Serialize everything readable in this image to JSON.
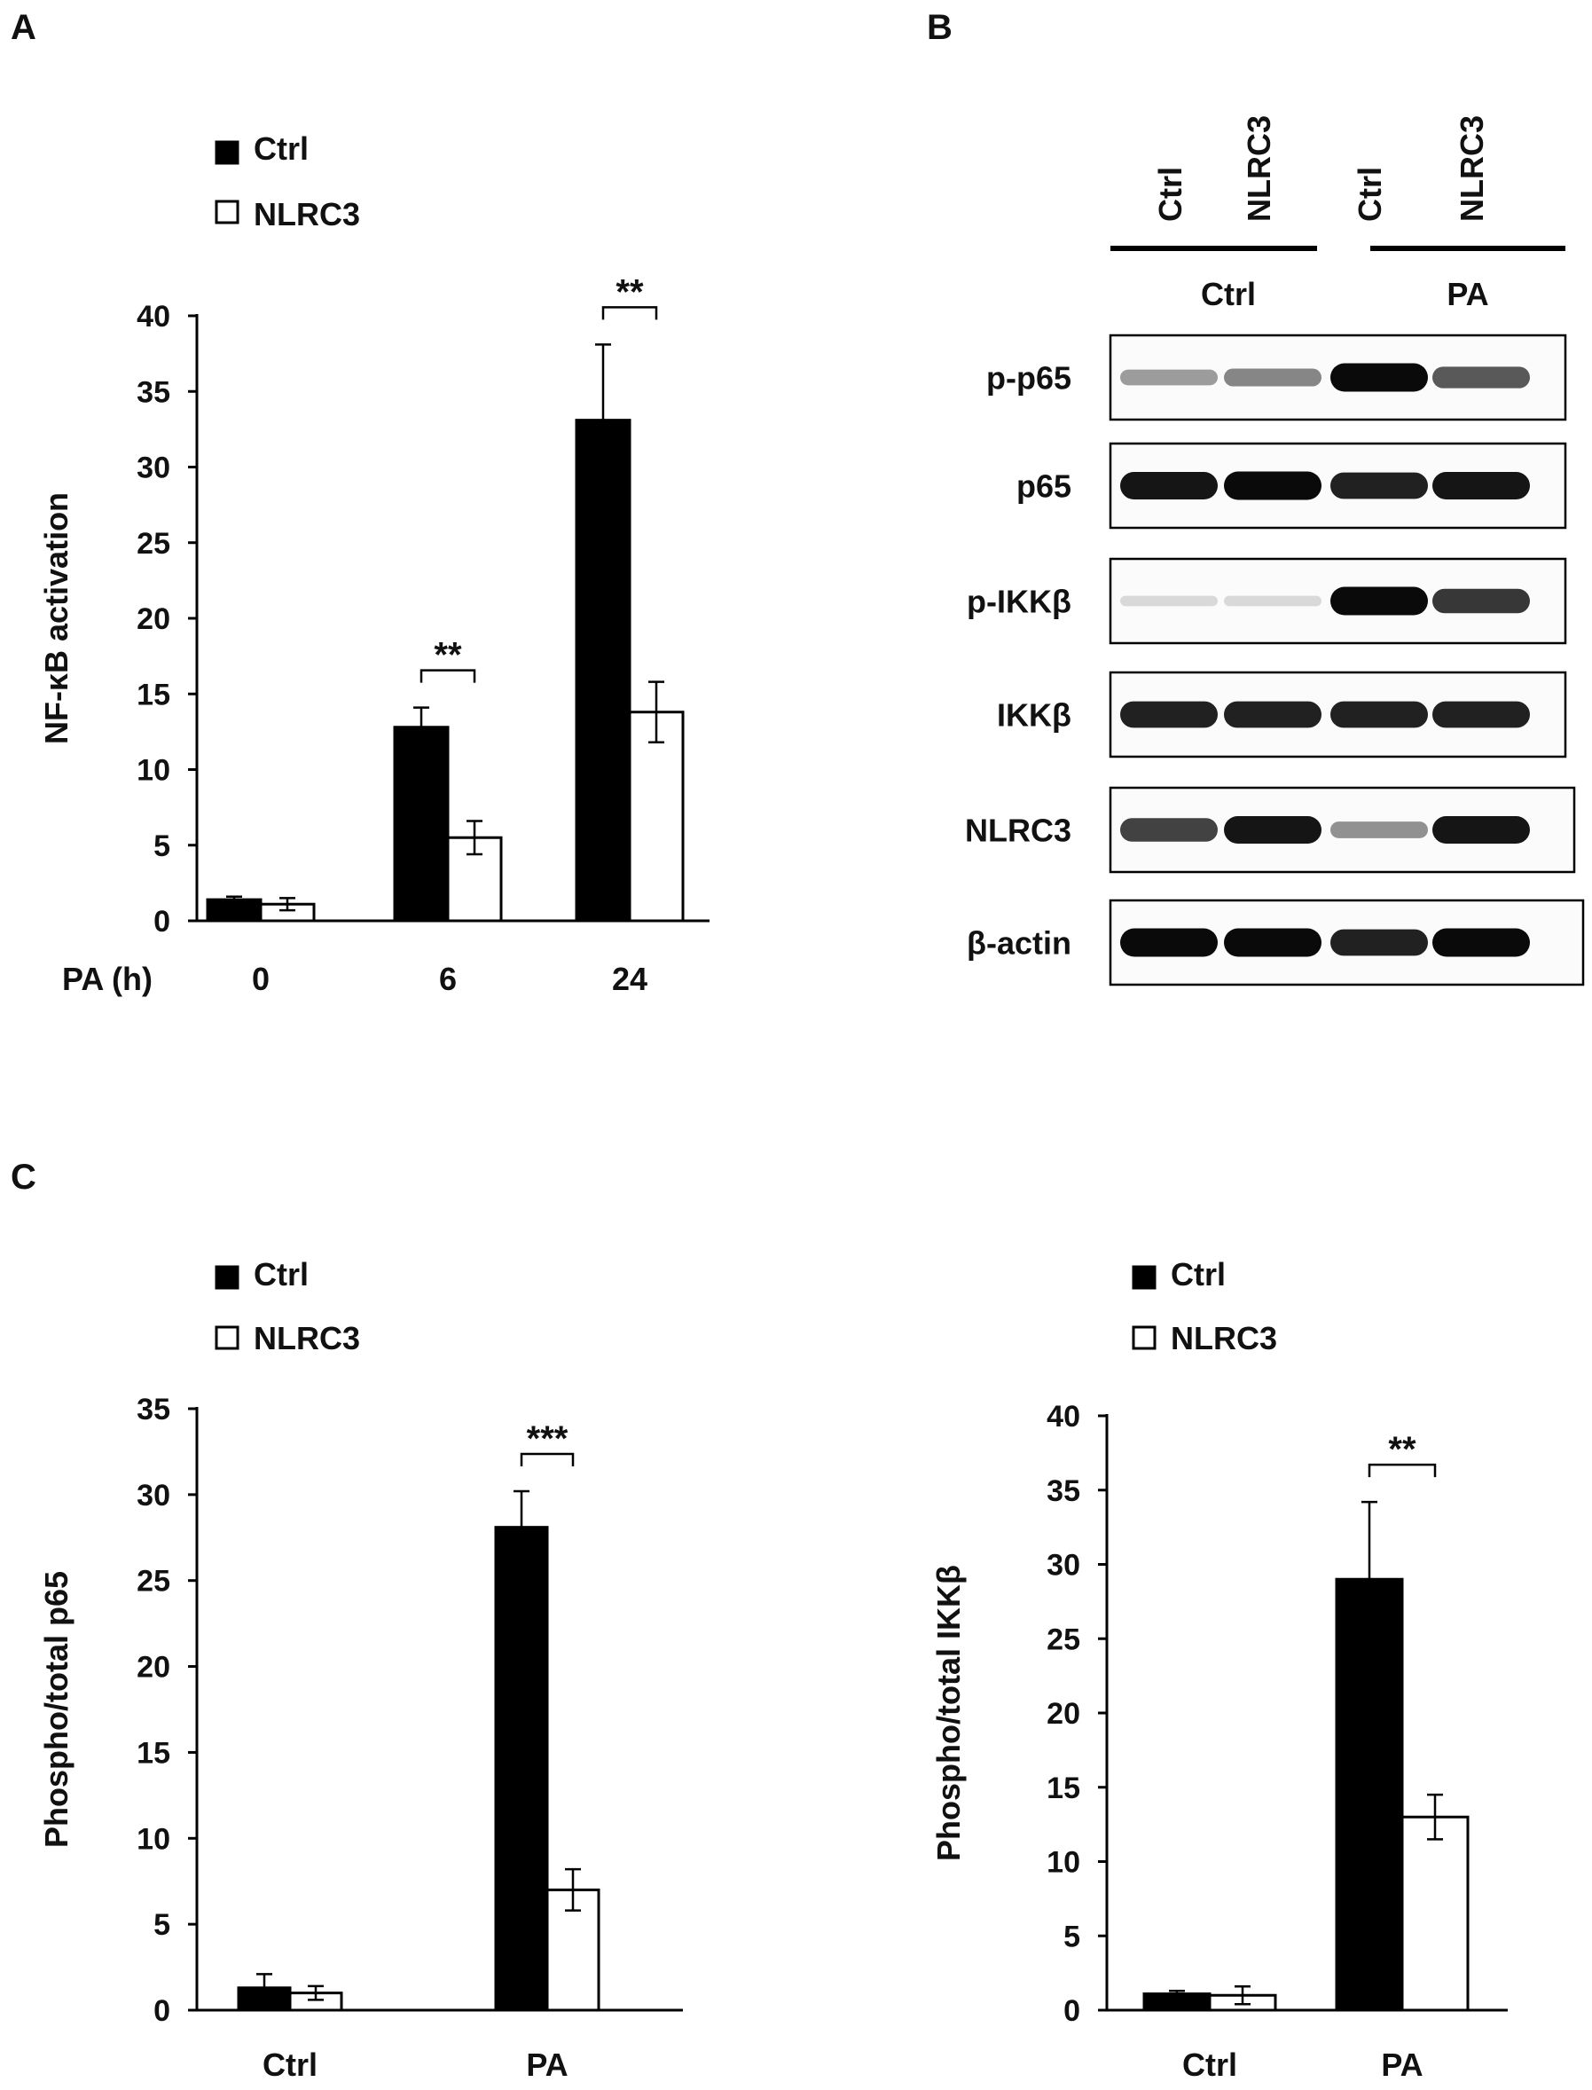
{
  "panels": {
    "A": "A",
    "B": "B",
    "C": "C"
  },
  "legend": {
    "ctrl": "Ctrl",
    "nlrc3": "NLRC3"
  },
  "colors": {
    "ctrl_fill": "#000000",
    "nlrc3_fill": "#ffffff",
    "axis": "#000000"
  },
  "chart_data": [
    {
      "id": "A",
      "type": "bar",
      "ylabel": "NF-κB activation",
      "xlabel": "PA (h)",
      "categories": [
        "0",
        "6",
        "24"
      ],
      "ylim": [
        0,
        40
      ],
      "yticks": [
        0,
        5,
        10,
        15,
        20,
        25,
        30,
        35,
        40
      ],
      "series": [
        {
          "name": "Ctrl",
          "values": [
            1.4,
            12.8,
            33.1
          ],
          "errors": [
            0.2,
            1.3,
            5.0
          ]
        },
        {
          "name": "NLRC3",
          "values": [
            1.1,
            5.5,
            13.8
          ],
          "errors": [
            0.4,
            1.1,
            2.0
          ]
        }
      ],
      "significance": [
        {
          "category": "6",
          "label": "**"
        },
        {
          "category": "24",
          "label": "**"
        }
      ]
    },
    {
      "id": "C-left",
      "type": "bar",
      "ylabel": "Phospho/total p65",
      "xlabel": "",
      "categories": [
        "Ctrl",
        "PA"
      ],
      "ylim": [
        0,
        35
      ],
      "yticks": [
        0,
        5,
        10,
        15,
        20,
        25,
        30,
        35
      ],
      "series": [
        {
          "name": "Ctrl",
          "values": [
            1.3,
            28.1
          ],
          "errors": [
            0.8,
            2.1
          ]
        },
        {
          "name": "NLRC3",
          "values": [
            1.0,
            7.0
          ],
          "errors": [
            0.4,
            1.2
          ]
        }
      ],
      "significance": [
        {
          "category": "PA",
          "label": "***"
        }
      ]
    },
    {
      "id": "C-right",
      "type": "bar",
      "ylabel": "Phospho/total IKKβ",
      "xlabel": "",
      "categories": [
        "Ctrl",
        "PA"
      ],
      "ylim": [
        0,
        40
      ],
      "yticks": [
        0,
        5,
        10,
        15,
        20,
        25,
        30,
        35,
        40
      ],
      "series": [
        {
          "name": "Ctrl",
          "values": [
            1.1,
            29.0
          ],
          "errors": [
            0.2,
            5.2
          ]
        },
        {
          "name": "NLRC3",
          "values": [
            1.0,
            13.0
          ],
          "errors": [
            0.6,
            1.5
          ]
        }
      ],
      "significance": [
        {
          "category": "PA",
          "label": "**"
        }
      ]
    }
  ],
  "western": {
    "lanes": [
      "Ctrl",
      "NLRC3",
      "Ctrl",
      "NLRC3"
    ],
    "groups": [
      "Ctrl",
      "PA"
    ],
    "blots": [
      {
        "label": "p-p65",
        "intensities": [
          0.35,
          0.45,
          1.0,
          0.65
        ]
      },
      {
        "label": "p65",
        "intensities": [
          0.95,
          1.0,
          0.9,
          0.95
        ]
      },
      {
        "label": "p-IKKβ",
        "intensities": [
          0.08,
          0.08,
          1.0,
          0.8
        ]
      },
      {
        "label": "IKKβ",
        "intensities": [
          0.9,
          0.9,
          0.9,
          0.9
        ]
      },
      {
        "label": "NLRC3",
        "intensities": [
          0.75,
          0.95,
          0.4,
          0.95
        ]
      },
      {
        "label": "β-actin",
        "intensities": [
          1.0,
          1.0,
          0.9,
          1.0
        ]
      }
    ]
  }
}
